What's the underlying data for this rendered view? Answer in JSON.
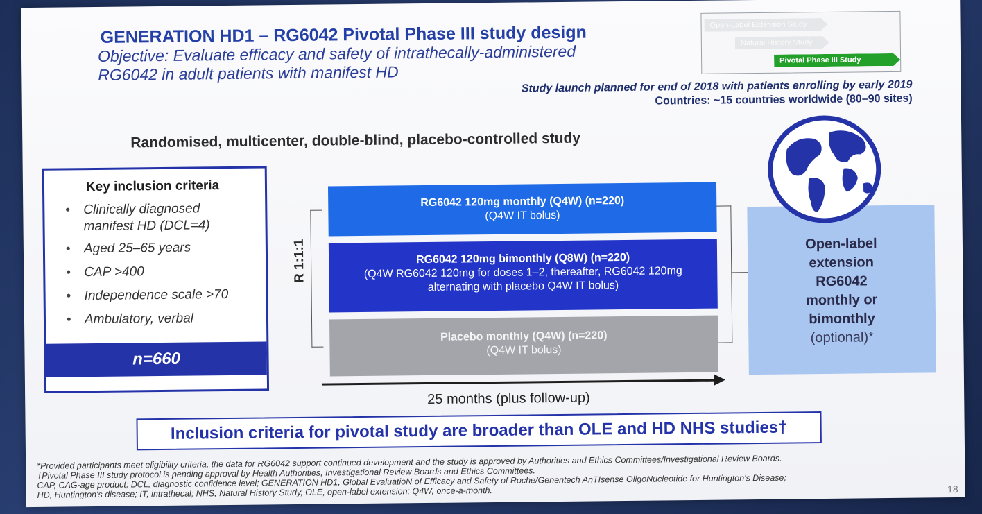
{
  "slide": {
    "title": "GENERATION HD1 – RG6042 Pivotal Phase III study design",
    "objective_line1": "Objective: Evaluate efficacy and safety of intrathecally-administered",
    "objective_line2": "RG6042 in adult patients with manifest HD",
    "launch": "Study launch planned for end of 2018 with patients enrolling by early 2019",
    "countries": "Countries: ~15 countries worldwide (80–90 sites)",
    "progress_arrows": [
      {
        "label": "Open-Label Extension Study",
        "color": "#e6e7ea"
      },
      {
        "label": "Natural History Study",
        "color": "#e6e7ea"
      },
      {
        "label": "Pivotal Phase III Study",
        "color": "#23a02a"
      }
    ],
    "design": "Randomised, multicenter, double-blind, placebo-controlled study",
    "criteria": {
      "title": "Key inclusion criteria",
      "items": [
        "Clinically diagnosed manifest HD (DCL=4)",
        "Aged 25–65 years",
        "CAP >400",
        "Independence scale >70",
        "Ambulatory, verbal"
      ],
      "n": "n=660"
    },
    "randomisation": "R 1:1:1",
    "arms": [
      {
        "head": "RG6042 120mg monthly (Q4W) (n=220)",
        "sub": "(Q4W IT bolus)",
        "color": "#1f6ae6"
      },
      {
        "head": "RG6042 120mg bimonthly (Q8W) (n=220)",
        "sub": "(Q4W RG6042 120mg for doses 1–2, thereafter, RG6042 120mg alternating with placebo Q4W IT bolus)",
        "color": "#2235c8"
      },
      {
        "head": "Placebo monthly (Q4W) (n=220)",
        "sub": "(Q4W IT bolus)",
        "color": "#a3a5ab"
      }
    ],
    "duration": "25 months (plus follow-up)",
    "ole": {
      "line1": "Open-label",
      "line2": "extension",
      "line3": "RG6042",
      "line4": "monthly or",
      "line5": "bimonthly",
      "line6": "(optional)*"
    },
    "conclusion": "Inclusion criteria for pivotal study are broader than OLE and HD NHS studies†",
    "footnotes": [
      "*Provided participants meet eligibility criteria, the data for RG6042 support continued development and the study is approved by Authorities and Ethics Committees/Investigational Review Boards.",
      "†Pivotal Phase III study protocol is pending approval by Health Authorities, Investigational Review Boards and Ethics Committees.",
      "CAP, CAG-age product; DCL, diagnostic confidence level; GENERATION HD1, Global EvaluatioN of Efficacy and Safety of Roche/Genentech AnTIsense OligoNucleotide for Huntington's Disease;",
      "HD, Huntington's disease; IT, intrathecal; NHS, Natural History Study, OLE, open-label extension; Q4W, once-a-month."
    ],
    "page_number": "18"
  }
}
